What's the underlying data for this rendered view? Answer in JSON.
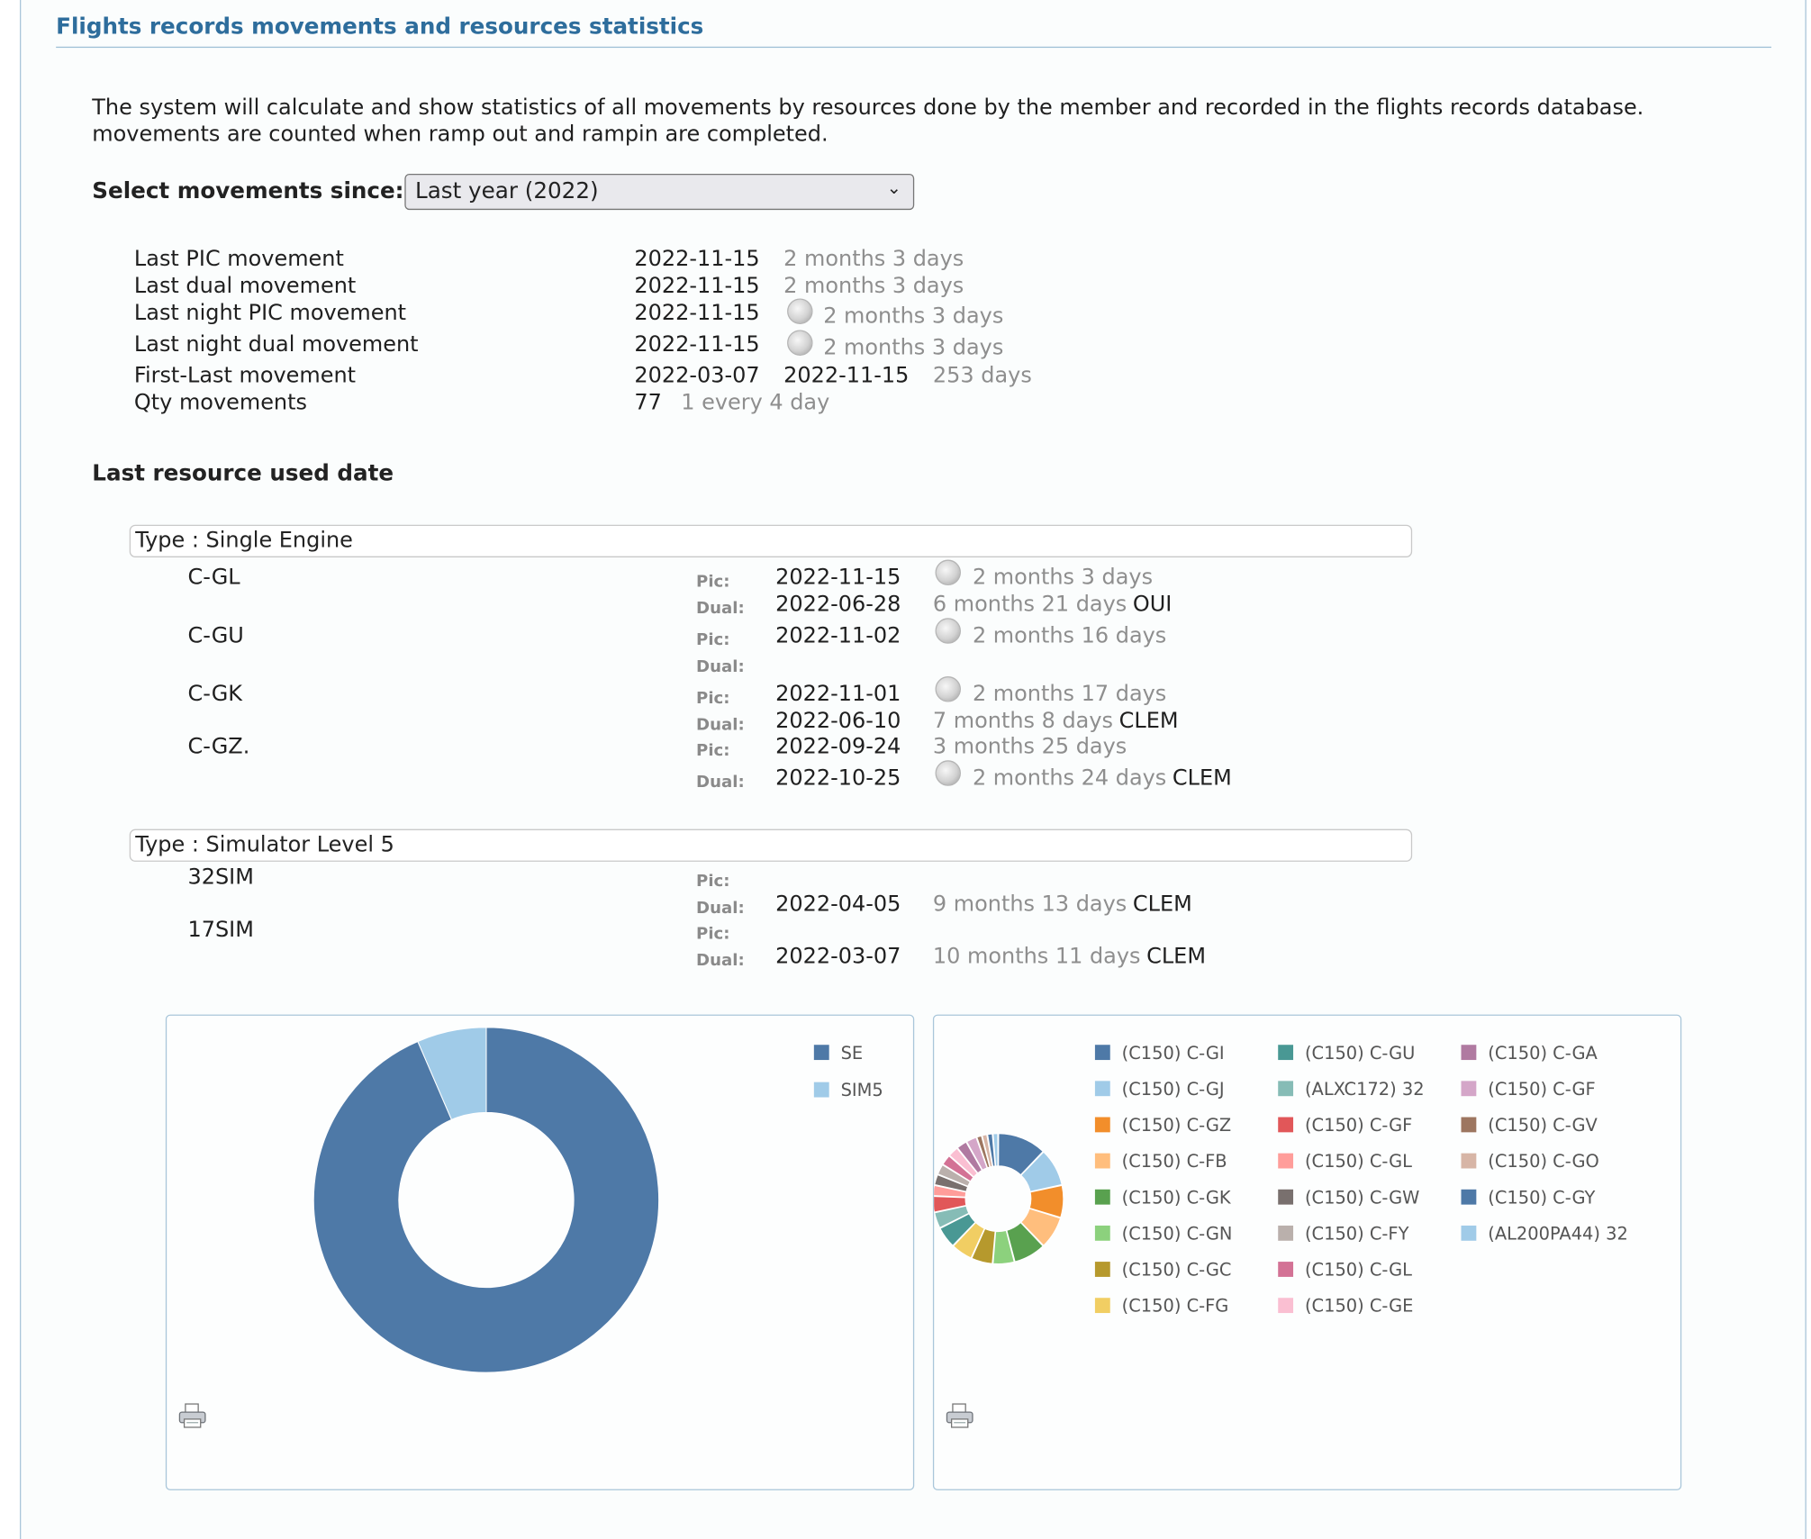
{
  "header": {
    "title": "Flights records movements and resources statistics"
  },
  "description": {
    "line1": "The system will calculate and show statistics of all movements by resources done by the member and recorded in the flights records database.",
    "line2": "movements are counted when ramp out and rampin are completed."
  },
  "filter": {
    "label": "Select movements since:",
    "selected": "Last year (2022)"
  },
  "stats": [
    {
      "label": "Last PIC movement",
      "date": "2022-11-15",
      "elapsed": "2 months 3 days",
      "night": false
    },
    {
      "label": "Last dual movement",
      "date": "2022-11-15",
      "elapsed": "2 months 3 days",
      "night": false
    },
    {
      "label": "Last night PIC movement",
      "date": "2022-11-15",
      "elapsed": "2 months 3 days",
      "night": true
    },
    {
      "label": "Last night dual movement",
      "date": "2022-11-15",
      "elapsed": "2 months 3 days",
      "night": true
    },
    {
      "label": "First-Last movement",
      "date": "2022-03-07",
      "date2": "2022-11-15",
      "elapsed": "253 days"
    },
    {
      "label": "Qty movements",
      "date": "77",
      "elapsed": "1 every 4 day"
    }
  ],
  "resources": {
    "heading": "Last resource used date",
    "pic_tag": "Pic:",
    "dual_tag": "Dual:",
    "groups": [
      {
        "type": "Type : Single Engine",
        "items": [
          {
            "reg": "C-GL",
            "pic": {
              "date": "2022-11-15",
              "elapsed": "2 months 3 days",
              "night": true,
              "instructor": ""
            },
            "dual": {
              "date": "2022-06-28",
              "elapsed": "6 months 21 days",
              "night": false,
              "instructor": "OUI"
            }
          },
          {
            "reg": "C-GU",
            "pic": {
              "date": "2022-11-02",
              "elapsed": "2 months 16 days",
              "night": true,
              "instructor": ""
            },
            "dual": {
              "date": "",
              "elapsed": "",
              "night": false,
              "instructor": ""
            }
          },
          {
            "reg": "C-GK",
            "pic": {
              "date": "2022-11-01",
              "elapsed": "2 months 17 days",
              "night": true,
              "instructor": ""
            },
            "dual": {
              "date": "2022-06-10",
              "elapsed": "7 months 8 days",
              "night": false,
              "instructor": "CLEM"
            }
          },
          {
            "reg": "C-GZ.",
            "pic": {
              "date": "2022-09-24",
              "elapsed": "3 months 25 days",
              "night": false,
              "instructor": ""
            },
            "dual": {
              "date": "2022-10-25",
              "elapsed": "2 months 24 days",
              "night": true,
              "instructor": "CLEM"
            }
          }
        ]
      },
      {
        "type": "Type : Simulator Level 5",
        "items": [
          {
            "reg": "32SIM",
            "pic": {
              "date": "",
              "elapsed": "",
              "night": false,
              "instructor": ""
            },
            "dual": {
              "date": "2022-04-05",
              "elapsed": "9 months 13 days",
              "night": false,
              "instructor": "CLEM"
            }
          },
          {
            "reg": "17SIM",
            "pic": {
              "date": "",
              "elapsed": "",
              "night": false,
              "instructor": ""
            },
            "dual": {
              "date": "2022-03-07",
              "elapsed": "10 months 11 days",
              "night": false,
              "instructor": "CLEM"
            }
          }
        ]
      }
    ]
  },
  "icons": {
    "night": "moon-icon",
    "print": "printer-icon",
    "dropdown": "chevron-down-icon"
  },
  "chart_data": [
    {
      "type": "pie",
      "donut": true,
      "title": "",
      "legend_position": "top-right",
      "categories": [
        "SE",
        "SIM5"
      ],
      "values": [
        72,
        5
      ],
      "colors": [
        "#4e79a7",
        "#a0cbe8"
      ]
    },
    {
      "type": "pie",
      "donut": true,
      "title": "",
      "legend_position": "right",
      "categories": [
        "(C150) C-GI",
        "(C150) C-GJ",
        "(C150) C-GZ",
        "(C150) C-FB",
        "(C150) C-GK",
        "(C150) C-GN",
        "(C150) C-GC",
        "(C150) C-FG",
        "(C150) C-GU",
        "(ALXC172) 32",
        "(C150) C-GF",
        "(C150) C-GL",
        "(C150) C-GW",
        "(C150) C-FY",
        "(C150) C-GL",
        "(C150) C-GE",
        "(C150) C-GA",
        "(C150) C-GF",
        "(C150) C-GV",
        "(C150) C-GO",
        "(C150) C-GY",
        "(AL200PA44) 32"
      ],
      "values": [
        9,
        7,
        6,
        6,
        6,
        4,
        4,
        4,
        4,
        3,
        3,
        2,
        2,
        2,
        2,
        2,
        2,
        2,
        1,
        1,
        1,
        1
      ],
      "colors": [
        "#4e79a7",
        "#a0cbe8",
        "#f28e2b",
        "#ffbe7d",
        "#59a14f",
        "#8cd17d",
        "#b6992d",
        "#f1ce63",
        "#499894",
        "#86bcb6",
        "#e15759",
        "#ff9d9a",
        "#79706e",
        "#bab0ac",
        "#d37295",
        "#fabfd2",
        "#b07aa1",
        "#d4a6c8",
        "#9d7660",
        "#d7b5a6",
        "#4e79a7",
        "#a0cbe8"
      ]
    }
  ]
}
